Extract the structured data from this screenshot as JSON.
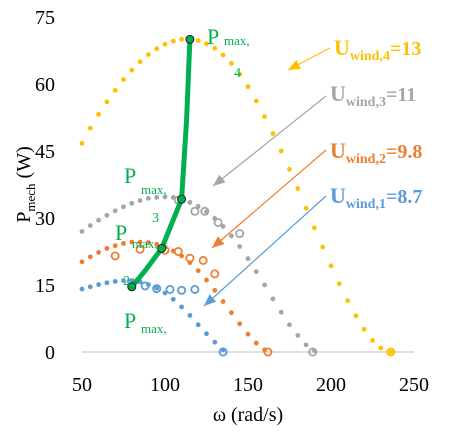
{
  "chart_data": {
    "type": "scatter",
    "title": "",
    "xlabel": "ω (rad/s)",
    "ylabel_main": "P",
    "ylabel_sub": "mech",
    "ylabel_tail": " (W)",
    "xlim": [
      50,
      250
    ],
    "ylim": [
      0,
      75
    ],
    "xticks": [
      "50",
      "100",
      "150",
      "200",
      "250"
    ],
    "yticks": [
      "0",
      "15",
      "30",
      "45",
      "60",
      "75"
    ],
    "grid": false,
    "series": [
      {
        "name": "U_wind,1=8.7",
        "color": "#5b9bd5",
        "curve": [
          [
            50,
            14.1
          ],
          [
            55,
            14.6
          ],
          [
            60,
            15.1
          ],
          [
            65,
            15.5
          ],
          [
            70,
            15.8
          ],
          [
            75,
            16.0
          ],
          [
            80,
            16.0
          ],
          [
            85,
            15.7
          ],
          [
            90,
            15.1
          ],
          [
            95,
            14.3
          ],
          [
            100,
            13.2
          ],
          [
            105,
            11.8
          ],
          [
            110,
            10.1
          ],
          [
            115,
            8.2
          ],
          [
            120,
            6.1
          ],
          [
            125,
            4.1
          ],
          [
            130,
            2.2
          ],
          [
            135,
            0.5
          ]
        ],
        "measured": [
          [
            80,
            15.5
          ],
          [
            88,
            14.8
          ],
          [
            95,
            14.2
          ],
          [
            103,
            14.0
          ],
          [
            110,
            13.8
          ],
          [
            118,
            14.0
          ],
          [
            135,
            0
          ]
        ]
      },
      {
        "name": "U_wind,2=9.8",
        "color": "#ed7d31",
        "curve": [
          [
            50,
            20.2
          ],
          [
            55,
            21.3
          ],
          [
            60,
            22.3
          ],
          [
            65,
            23.2
          ],
          [
            70,
            23.8
          ],
          [
            75,
            24.3
          ],
          [
            80,
            24.6
          ],
          [
            85,
            24.6
          ],
          [
            90,
            24.5
          ],
          [
            95,
            24.1
          ],
          [
            100,
            23.5
          ],
          [
            105,
            22.6
          ],
          [
            110,
            21.5
          ],
          [
            115,
            20.0
          ],
          [
            120,
            18.2
          ],
          [
            125,
            16.1
          ],
          [
            130,
            13.8
          ],
          [
            135,
            11.3
          ],
          [
            140,
            8.8
          ],
          [
            145,
            6.3
          ],
          [
            150,
            4.0
          ],
          [
            155,
            2.0
          ],
          [
            160,
            0.5
          ]
        ],
        "measured": [
          [
            70,
            21.5
          ],
          [
            85,
            23.0
          ],
          [
            100,
            22.8
          ],
          [
            108,
            22.5
          ],
          [
            115,
            21.0
          ],
          [
            123,
            20.5
          ],
          [
            130,
            17.5
          ],
          [
            162,
            0
          ]
        ]
      },
      {
        "name": "U_wind,3=11",
        "color": "#a5a5a5",
        "curve": [
          [
            50,
            27.0
          ],
          [
            55,
            28.3
          ],
          [
            60,
            29.5
          ],
          [
            65,
            30.6
          ],
          [
            70,
            31.6
          ],
          [
            75,
            32.5
          ],
          [
            80,
            33.3
          ],
          [
            85,
            33.9
          ],
          [
            90,
            34.4
          ],
          [
            95,
            34.6
          ],
          [
            100,
            34.7
          ],
          [
            105,
            34.6
          ],
          [
            110,
            34.2
          ],
          [
            115,
            33.5
          ],
          [
            120,
            32.6
          ],
          [
            125,
            31.4
          ],
          [
            130,
            29.9
          ],
          [
            135,
            28.1
          ],
          [
            140,
            26.0
          ],
          [
            145,
            23.6
          ],
          [
            150,
            20.9
          ],
          [
            155,
            18.0
          ],
          [
            160,
            15.0
          ],
          [
            165,
            11.9
          ],
          [
            170,
            8.9
          ],
          [
            175,
            6.1
          ],
          [
            180,
            3.7
          ],
          [
            185,
            1.6
          ],
          [
            190,
            0.3
          ]
        ],
        "measured": [
          [
            108,
            34.0
          ],
          [
            118,
            31.5
          ],
          [
            124,
            31.5
          ],
          [
            132,
            29.0
          ],
          [
            145,
            26.5
          ],
          [
            189,
            0
          ]
        ]
      },
      {
        "name": "U_wind,4=13",
        "color": "#ffc000",
        "curve": [
          [
            50,
            46.7
          ],
          [
            55,
            50.1
          ],
          [
            60,
            53.2
          ],
          [
            65,
            56.0
          ],
          [
            70,
            58.6
          ],
          [
            75,
            61.0
          ],
          [
            80,
            63.1
          ],
          [
            85,
            65.0
          ],
          [
            90,
            66.6
          ],
          [
            95,
            67.9
          ],
          [
            100,
            68.9
          ],
          [
            105,
            69.6
          ],
          [
            110,
            70.0
          ],
          [
            115,
            70.0
          ],
          [
            120,
            69.7
          ],
          [
            125,
            69.0
          ],
          [
            130,
            68.0
          ],
          [
            135,
            66.5
          ],
          [
            140,
            64.6
          ],
          [
            145,
            62.2
          ],
          [
            150,
            59.4
          ],
          [
            155,
            56.2
          ],
          [
            160,
            52.7
          ],
          [
            165,
            48.9
          ],
          [
            170,
            45.0
          ],
          [
            175,
            40.9
          ],
          [
            180,
            36.6
          ],
          [
            185,
            32.2
          ],
          [
            190,
            27.8
          ],
          [
            195,
            23.5
          ],
          [
            200,
            19.3
          ],
          [
            205,
            15.3
          ],
          [
            210,
            11.5
          ],
          [
            215,
            8.1
          ],
          [
            220,
            5.1
          ],
          [
            225,
            2.6
          ],
          [
            230,
            0.9
          ],
          [
            236,
            0
          ]
        ],
        "measured": [
          [
            236,
            0
          ]
        ]
      },
      {
        "name": "P_max locus",
        "color": "#00b050",
        "points": [
          [
            80,
            14.6
          ],
          [
            88,
            18.2
          ],
          [
            98,
            23.2
          ],
          [
            110,
            34.2
          ],
          [
            113,
            52.0
          ],
          [
            115,
            70.0
          ]
        ]
      }
    ],
    "annotations": {
      "pmax_main": "P",
      "pmax_sub": "max,",
      "pmax_labels": [
        {
          "idx": "4"
        },
        {
          "idx": "3"
        },
        {
          "idx": "2"
        },
        {
          "idx": ""
        }
      ],
      "wind_main": "U",
      "wind_labels": [
        {
          "sub": "wind,4",
          "val": "=13",
          "color": "#ffc000"
        },
        {
          "sub": "wind,3",
          "val": "=11",
          "color": "#a5a5a5"
        },
        {
          "sub": "wind,2",
          "val": "=9.8",
          "color": "#ed7d31"
        },
        {
          "sub": "wind,1",
          "val": "=8.7",
          "color": "#5b9bd5"
        }
      ]
    }
  }
}
